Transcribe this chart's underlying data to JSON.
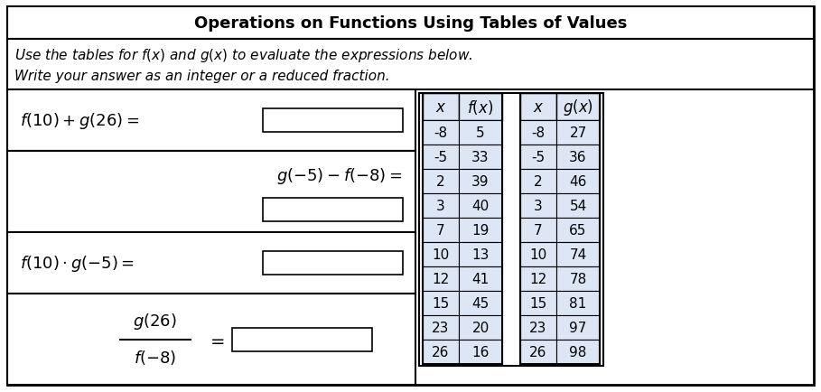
{
  "title": "Operations on Functions Using Tables of Values",
  "subtitle_line1": "Use the tables for $f(x)$ and $g(x)$ to evaluate the expressions below.",
  "subtitle_line2": "Write your answer as an integer or a reduced fraction.",
  "f_table": {
    "x": [
      -8,
      -5,
      2,
      3,
      7,
      10,
      12,
      15,
      23,
      26
    ],
    "fx": [
      5,
      33,
      39,
      40,
      19,
      13,
      41,
      45,
      20,
      16
    ]
  },
  "g_table": {
    "x": [
      -8,
      -5,
      2,
      3,
      7,
      10,
      12,
      15,
      23,
      26
    ],
    "gx": [
      27,
      36,
      46,
      54,
      65,
      74,
      78,
      81,
      97,
      98
    ]
  },
  "bg_color": "#ffffff",
  "cell_bg": "#dce6f5",
  "header_bg": "#dce6f5",
  "border_color": "#000000",
  "expr1": "$f(10) + g(26) =$",
  "expr2": "$g( - 5) - f( - 8) =$",
  "expr3": "$f(10) \\cdot g( - 5) =$",
  "frac_top": "$g(26)$",
  "frac_bot": "$f( - 8)$"
}
